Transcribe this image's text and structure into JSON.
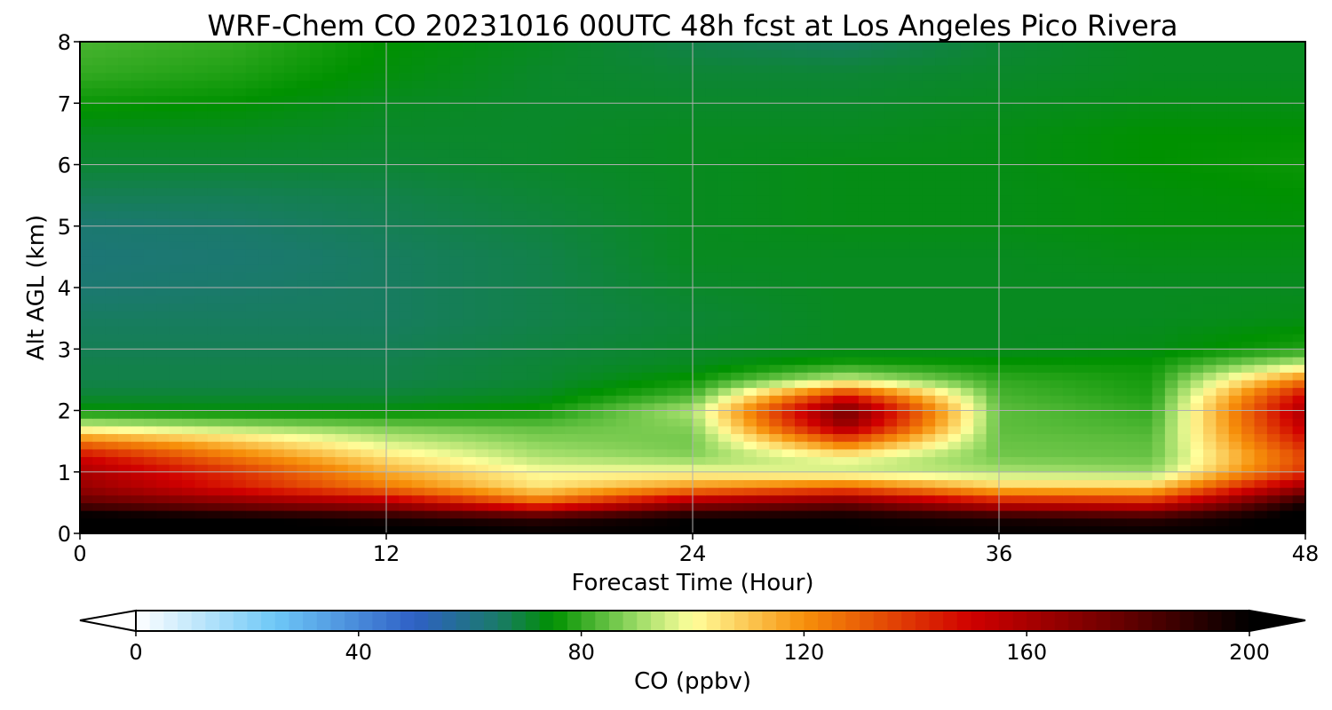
{
  "chart_data": {
    "type": "heatmap",
    "title": "WRF-Chem CO  20231016 00UTC 48h fcst at Los Angeles Pico Rivera",
    "xlabel": "Forecast Time (Hour)",
    "ylabel": "Alt AGL (km)",
    "xlim": [
      0,
      48
    ],
    "ylim": [
      0,
      8
    ],
    "x_ticks": [
      0,
      12,
      24,
      36,
      48
    ],
    "y_ticks": [
      0,
      1,
      2,
      3,
      4,
      5,
      6,
      7,
      8
    ],
    "grid": true,
    "x_hours": [
      0,
      6,
      12,
      18,
      24,
      30,
      36,
      42,
      48
    ],
    "y_alt_km": [
      0,
      0.25,
      0.5,
      0.75,
      1,
      1.25,
      1.5,
      1.75,
      2,
      2.25,
      2.5,
      2.75,
      3,
      3.5,
      4,
      4.5,
      5,
      5.5,
      6,
      6.5,
      7,
      7.5,
      8
    ],
    "co_ppbv": [
      [
        205,
        205,
        205,
        200,
        200,
        200,
        200,
        200,
        200
      ],
      [
        205,
        200,
        195,
        190,
        200,
        200,
        195,
        190,
        205
      ],
      [
        180,
        170,
        160,
        130,
        165,
        175,
        150,
        145,
        195
      ],
      [
        165,
        145,
        125,
        105,
        120,
        130,
        110,
        110,
        165
      ],
      [
        160,
        140,
        115,
        100,
        100,
        95,
        92,
        90,
        140
      ],
      [
        150,
        125,
        105,
        92,
        88,
        100,
        86,
        85,
        135
      ],
      [
        125,
        110,
        95,
        88,
        86,
        130,
        85,
        84,
        145
      ],
      [
        95,
        90,
        86,
        84,
        88,
        165,
        84,
        82,
        155
      ],
      [
        75,
        74,
        74,
        76,
        92,
        175,
        84,
        80,
        160
      ],
      [
        70,
        70,
        70,
        72,
        82,
        145,
        82,
        78,
        150
      ],
      [
        68,
        68,
        68,
        70,
        76,
        95,
        80,
        77,
        125
      ],
      [
        68,
        68,
        68,
        70,
        72,
        78,
        76,
        76,
        95
      ],
      [
        67,
        67,
        67,
        69,
        71,
        72,
        72,
        73,
        78
      ],
      [
        66,
        66,
        66,
        68,
        70,
        72,
        72,
        72,
        73
      ],
      [
        64,
        65,
        66,
        68,
        71,
        72,
        72,
        72,
        72
      ],
      [
        63,
        64,
        66,
        68,
        72,
        72,
        72,
        73,
        73
      ],
      [
        64,
        65,
        67,
        69,
        72,
        73,
        73,
        74,
        74
      ],
      [
        67,
        67,
        68,
        70,
        72,
        73,
        73,
        74,
        75
      ],
      [
        70,
        70,
        70,
        71,
        72,
        73,
        73,
        75,
        76
      ],
      [
        72,
        72,
        71,
        71,
        72,
        72,
        73,
        75,
        75
      ],
      [
        76,
        75,
        72,
        71,
        71,
        71,
        72,
        73,
        73
      ],
      [
        80,
        78,
        74,
        71,
        70,
        70,
        71,
        72,
        72
      ],
      [
        82,
        80,
        75,
        72,
        68,
        66,
        70,
        72,
        72
      ]
    ],
    "colorbar": {
      "label": "CO  (ppbv)",
      "min": 0,
      "max": 200,
      "ticks": [
        0,
        40,
        80,
        120,
        160,
        200
      ],
      "extend": "both",
      "stops": [
        {
          "v": 0,
          "c": "#ffffff"
        },
        {
          "v": 25,
          "c": "#6ec8f7"
        },
        {
          "v": 50,
          "c": "#2f60c6"
        },
        {
          "v": 65,
          "c": "#1a7a6a"
        },
        {
          "v": 75,
          "c": "#009100"
        },
        {
          "v": 90,
          "c": "#9bdb66"
        },
        {
          "v": 100,
          "c": "#ffff9c"
        },
        {
          "v": 120,
          "c": "#f7900a"
        },
        {
          "v": 150,
          "c": "#d00000"
        },
        {
          "v": 175,
          "c": "#700000"
        },
        {
          "v": 200,
          "c": "#000000"
        }
      ]
    }
  }
}
